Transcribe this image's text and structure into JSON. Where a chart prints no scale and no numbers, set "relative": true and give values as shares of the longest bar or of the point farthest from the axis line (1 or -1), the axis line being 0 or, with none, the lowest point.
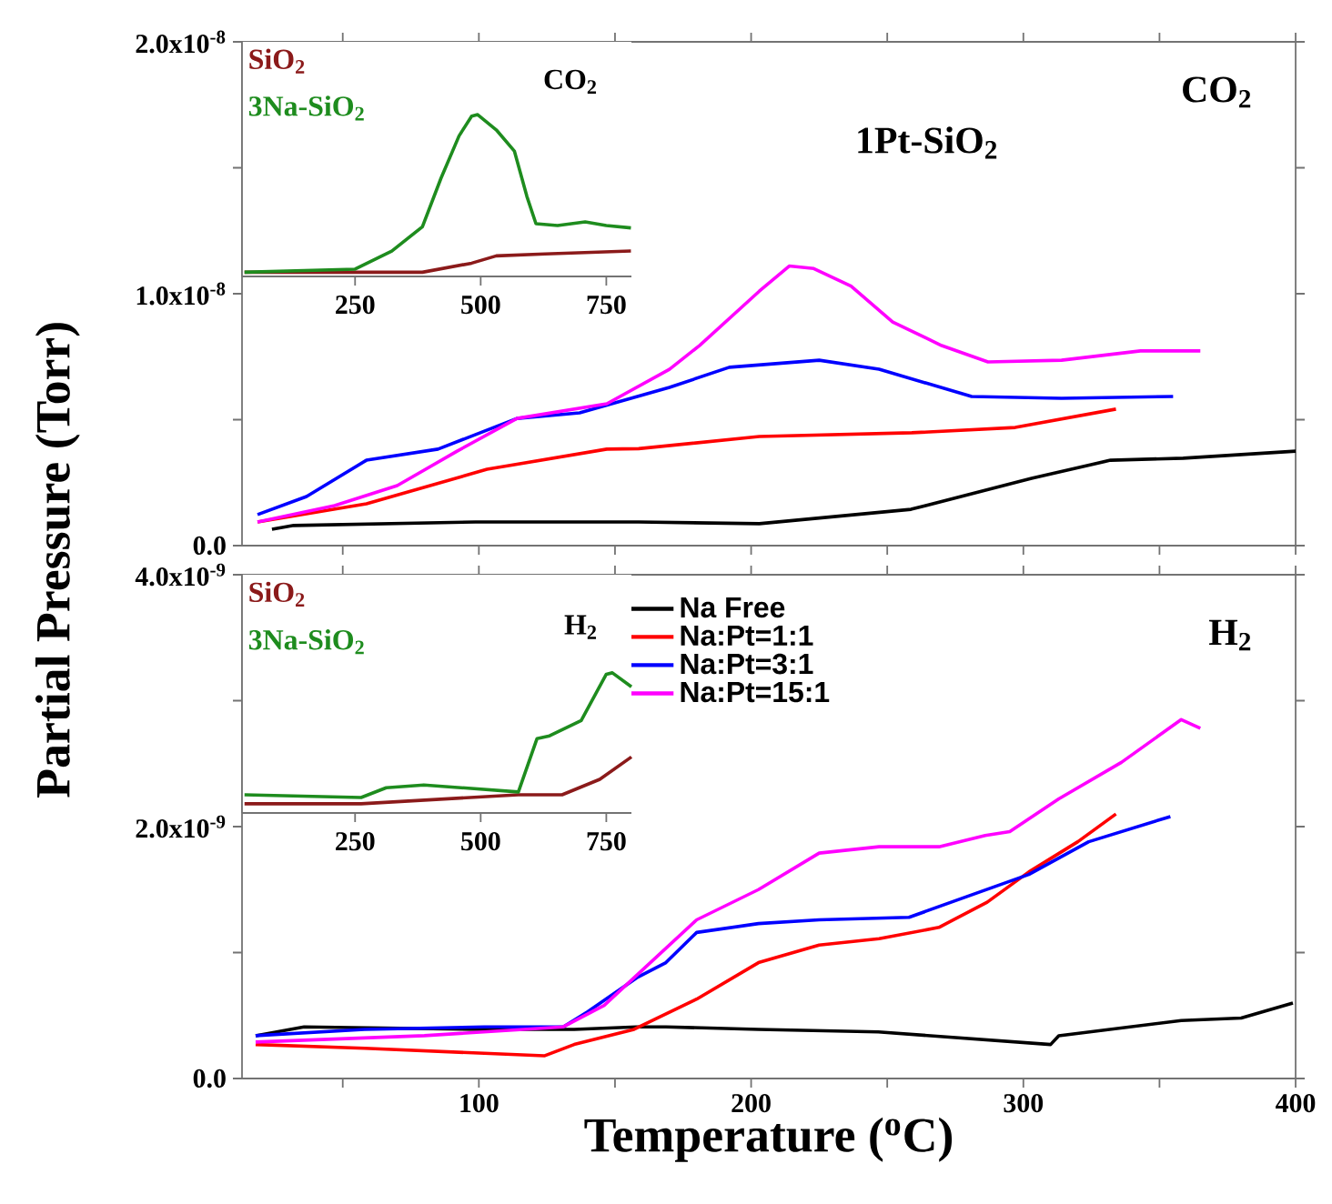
{
  "chart_data": [
    {
      "type": "line",
      "title": "1Pt-SiO$_{2}$",
      "annotations": [
        "CO$_{2}$"
      ],
      "xlim": [
        13,
        400
      ],
      "xticks": [
        50,
        100,
        150,
        200,
        250,
        300,
        350,
        400
      ],
      "tick_labels": "y",
      "ylim": [
        0,
        2e-08
      ],
      "yticks": [
        {
          "value": 0,
          "label": "0.0"
        },
        {
          "value": 5e-09,
          "label": null
        },
        {
          "value": 1e-08,
          "label": "1.0x10$^{-8}$"
        },
        {
          "value": 1.5e-08,
          "label": null
        },
        {
          "value": 2e-08,
          "label": "2.0x10$^{-8}$"
        }
      ],
      "series": [
        {
          "color": "#000000",
          "x": [
            24,
            32,
            98.7,
            158.7,
            203,
            258.7,
            303,
            332,
            358.7,
            400
          ],
          "values": [
            6.5e-10,
            8e-10,
            9.4e-10,
            9.4e-10,
            8.7e-10,
            1.44e-09,
            2.67e-09,
            3.39e-09,
            3.47e-09,
            3.75e-09
          ]
        },
        {
          "color": "#ff0000",
          "x": [
            18.7,
            58.7,
            103,
            147,
            158.7,
            203,
            259,
            297,
            334
          ],
          "values": [
            9.4e-10,
            1.66e-09,
            3.03e-09,
            3.83e-09,
            3.85e-09,
            4.33e-09,
            4.48e-09,
            4.69e-09,
            5.42e-09
          ]
        },
        {
          "color": "#0000ff",
          "x": [
            18.7,
            36.7,
            58.7,
            85,
            114,
            137,
            170,
            192,
            225,
            247,
            281,
            314,
            355
          ],
          "values": [
            1.23e-09,
            1.95e-09,
            3.39e-09,
            3.83e-09,
            5.05e-09,
            5.27e-09,
            6.28e-09,
            7.08e-09,
            7.36e-09,
            7e-09,
            5.92e-09,
            5.85e-09,
            5.92e-09
          ]
        },
        {
          "color": "#ff00ff",
          "x": [
            18.7,
            47,
            70,
            92,
            114,
            147,
            170,
            181,
            203,
            214,
            223,
            236.7,
            252,
            270,
            287,
            314,
            343,
            365
          ],
          "values": [
            9.4e-10,
            1.59e-09,
            2.38e-09,
            3.75e-09,
            5.05e-09,
            5.63e-09,
            7e-09,
            7.94e-09,
            1.01e-08,
            1.11e-08,
            1.1e-08,
            1.03e-08,
            8.88e-09,
            7.94e-09,
            7.29e-09,
            7.36e-09,
            7.73e-09,
            7.73e-09
          ]
        }
      ]
    },
    {
      "type": "line",
      "relative": true,
      "annotations": [
        "CO$_{2}$"
      ],
      "xlim": [
        25,
        800
      ],
      "xticks": [
        250,
        500,
        750
      ],
      "series": [
        {
          "name": "SiO$_{2}$",
          "color": "#8b1a1a",
          "x": [
            30,
            384,
            482,
            531,
            628,
            799
          ],
          "values": [
            0.026,
            0.026,
            0.082,
            0.127,
            0.139,
            0.157
          ]
        },
        {
          "name": "3Na-SiO$_{2}$",
          "color": "#1e8c1e",
          "x": [
            30,
            250,
            323,
            384,
            421,
            457,
            482,
            494,
            531,
            567,
            592,
            610,
            653,
            708,
            750,
            799
          ],
          "values": [
            0.026,
            0.045,
            0.157,
            0.307,
            0.607,
            0.869,
            0.99,
            1.0,
            0.906,
            0.775,
            0.494,
            0.326,
            0.315,
            0.337,
            0.315,
            0.3
          ]
        }
      ]
    },
    {
      "type": "line",
      "annotations": [
        "H$_{2}$"
      ],
      "xlabel": "Temperature ($^{o}$C)",
      "ylabel": "Partial Pressure (Torr)",
      "legend": "top",
      "xlim": [
        13,
        400
      ],
      "xticks": [
        {
          "value": 50,
          "label": null
        },
        100,
        {
          "value": 150,
          "label": null
        },
        200,
        {
          "value": 250,
          "label": null
        },
        300,
        {
          "value": 350,
          "label": null
        },
        400
      ],
      "ylim": [
        0,
        4e-09
      ],
      "yticks": [
        {
          "value": 0,
          "label": "0.0"
        },
        {
          "value": 1e-09,
          "label": null
        },
        {
          "value": 2e-09,
          "label": "2.0x10$^{-9}$"
        },
        {
          "value": 3e-09,
          "label": null
        },
        {
          "value": 4e-09,
          "label": "4.0x10$^{-9}$"
        }
      ],
      "series": [
        {
          "name": "Na Free",
          "color": "#000000",
          "x": [
            18,
            35.8,
            100,
            135,
            158,
            168.7,
            202.7,
            246.7,
            310,
            313,
            358,
            380,
            399
          ],
          "values": [
            3.4e-10,
            4.1e-10,
            3.9e-10,
            3.9e-10,
            4.1e-10,
            4.1e-10,
            3.9e-10,
            3.7e-10,
            2.7e-10,
            3.4e-10,
            4.6e-10,
            4.8e-10,
            6e-10
          ]
        },
        {
          "name": "Na:Pt=1:1",
          "color": "#ff0000",
          "x": [
            18,
            58,
            102,
            124,
            135,
            157,
            180,
            202.7,
            225,
            247,
            269,
            286.7,
            302,
            320,
            334
          ],
          "values": [
            2.7e-10,
            2.4e-10,
            2e-10,
            1.8e-10,
            2.7e-10,
            3.9e-10,
            6.3e-10,
            9.2e-10,
            1.06e-09,
            1.11e-09,
            1.2e-09,
            1.4e-09,
            1.64e-09,
            1.88e-09,
            2.1e-09
          ]
        },
        {
          "name": "Na:Pt=3:1",
          "color": "#0000ff",
          "x": [
            18,
            58,
            102,
            131,
            140,
            158,
            168.7,
            180,
            202.7,
            225,
            258,
            280,
            302,
            324,
            354
          ],
          "values": [
            3.4e-10,
            3.9e-10,
            4.1e-10,
            4.1e-10,
            5.3e-10,
            8e-10,
            9.2e-10,
            1.16e-09,
            1.23e-09,
            1.26e-09,
            1.28e-09,
            1.45e-09,
            1.62e-09,
            1.88e-09,
            2.08e-09
          ]
        },
        {
          "name": "Na:Pt=15:1",
          "color": "#ff00ff",
          "x": [
            18,
            80,
            131,
            146,
            180,
            202.7,
            225,
            247,
            269,
            286,
            295,
            313,
            336,
            358,
            365
          ],
          "values": [
            2.9e-10,
            3.4e-10,
            4.1e-10,
            5.8e-10,
            1.26e-09,
            1.5e-09,
            1.79e-09,
            1.84e-09,
            1.84e-09,
            1.93e-09,
            1.96e-09,
            2.22e-09,
            2.51e-09,
            2.85e-09,
            2.78e-09
          ]
        }
      ]
    },
    {
      "type": "line",
      "relative": true,
      "annotations": [
        "H$_{2}$"
      ],
      "xlim": [
        25,
        800
      ],
      "xticks": [
        250,
        500,
        750
      ],
      "series": [
        {
          "name": "SiO$_{2}$",
          "color": "#8b1a1a",
          "x": [
            30,
            262,
            575,
            662,
            737,
            800
          ],
          "values": [
            0.066,
            0.066,
            0.13,
            0.13,
            0.24,
            0.4
          ]
        },
        {
          "name": "3Na-SiO$_{2}$",
          "color": "#1e8c1e",
          "x": [
            30,
            262,
            312,
            387,
            575,
            612,
            637,
            700,
            750,
            762,
            800
          ],
          "values": [
            0.13,
            0.11,
            0.18,
            0.2,
            0.15,
            0.53,
            0.55,
            0.66,
            0.99,
            1.0,
            0.9
          ]
        }
      ]
    }
  ]
}
